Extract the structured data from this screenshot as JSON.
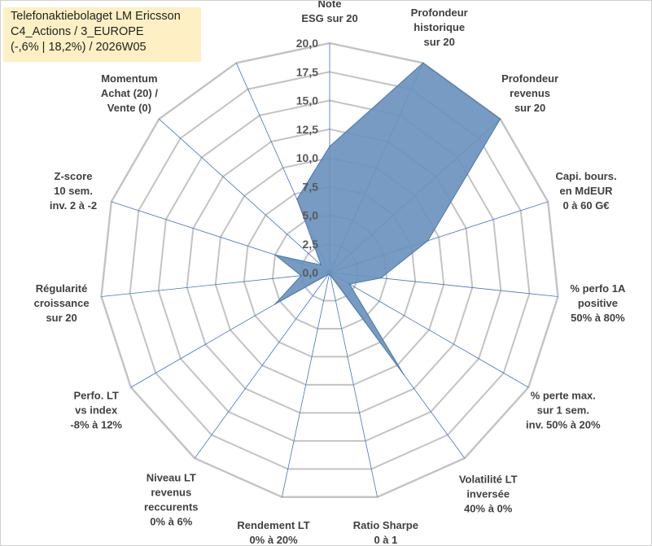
{
  "info_box": {
    "line1": "Telefonaktiebolaget LM Ericsson",
    "line2": "C4_Actions / 3_EUROPE",
    "line3": "(-,6% | 18,2%) / 2026W05"
  },
  "chart_data": {
    "type": "radar",
    "title": "",
    "r_range": [
      0,
      20
    ],
    "r_ticks": [
      "0,0",
      "2,5",
      "5,0",
      "7,5",
      "10,0",
      "12,5",
      "15,0",
      "17,5",
      "20,0"
    ],
    "grid": true,
    "axes": [
      {
        "label": [
          "Note",
          "ESG sur 20"
        ],
        "value": 11.0
      },
      {
        "label": [
          "Profondeur",
          "historique",
          "sur 20"
        ],
        "value": 20.0
      },
      {
        "label": [
          "Profondeur",
          "revenus",
          "sur 20"
        ],
        "value": 20.0
      },
      {
        "label": [
          "Capi. bours.",
          "en MdEUR",
          "0 à 60 G€"
        ],
        "value": 9.0
      },
      {
        "label": [
          "% perfo 1A",
          "positive",
          "50% à 80%"
        ],
        "value": 4.5
      },
      {
        "label": [
          "% perte max.",
          "sur 1 sem.",
          "inv. 50% à 20%"
        ],
        "value": 2.0
      },
      {
        "label": [
          "Volatilité LT",
          "inversée",
          "40% à 0%"
        ],
        "value": 11.0
      },
      {
        "label": [
          "Ratio Sharpe",
          "0 à 1"
        ],
        "value": 0.2
      },
      {
        "label": [
          "Rendement LT",
          "0% à 20%"
        ],
        "value": 0.2
      },
      {
        "label": [
          "Niveau LT",
          "revenus",
          "reccurents",
          "0% à 6%"
        ],
        "value": 0.2
      },
      {
        "label": [
          "Perfo. LT",
          "vs index",
          "-8% à 12%"
        ],
        "value": 5.5
      },
      {
        "label": [
          "Régularité",
          "croissance",
          "sur 20"
        ],
        "value": 2.5
      },
      {
        "label": [
          "Z-score",
          "10 sem.",
          "inv. 2 à -2"
        ],
        "value": 5.0
      },
      {
        "label": [
          "Momentum",
          "Achat (20) /",
          "Vente (0)"
        ],
        "value": 1.0
      },
      {
        "label": [],
        "value": 7.0
      }
    ],
    "colors": {
      "fill": "#6b93bd",
      "stroke": "#4a7aaa",
      "grid": "#c3c3c3",
      "spoke": "#4472c4"
    }
  }
}
